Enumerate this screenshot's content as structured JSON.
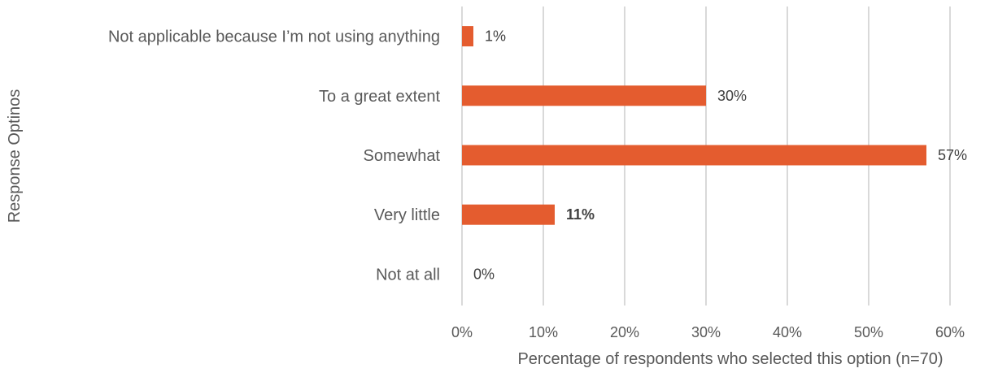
{
  "chart_data": {
    "type": "bar",
    "orientation": "horizontal",
    "categories": [
      "Not applicable because I’m not using anything",
      "To a great extent",
      "Somewhat",
      "Very little",
      "Not at all"
    ],
    "values": [
      1.4,
      30,
      57.1,
      11.4,
      0
    ],
    "data_labels": [
      "1%",
      "30%",
      "57%",
      "11%",
      "0%"
    ],
    "bold_labels": [
      false,
      false,
      false,
      true,
      false
    ],
    "bar_color": "#e45c2f",
    "xlabel": "Percentage of respondents who selected this option (n=70)",
    "ylabel": "Response Optinos",
    "xlim": [
      0,
      60
    ],
    "x_ticks": [
      0,
      10,
      20,
      30,
      40,
      50,
      60
    ],
    "x_tick_labels": [
      "0%",
      "10%",
      "20%",
      "30%",
      "40%",
      "50%",
      "60%"
    ],
    "grid": "vertical",
    "legend": "none"
  }
}
